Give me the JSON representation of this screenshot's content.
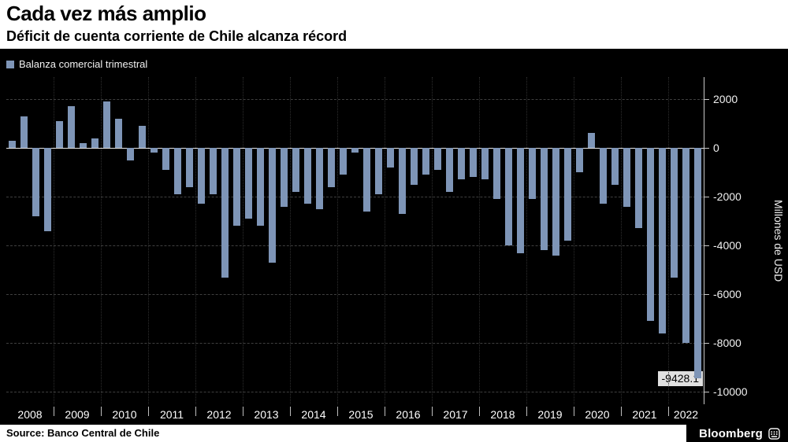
{
  "header": {
    "title": "Cada vez más amplio",
    "subtitle": "Déficit de cuenta corriente de Chile alcanza récord"
  },
  "legend": {
    "label": "Balanza comercial trimestral"
  },
  "y_axis": {
    "title": "Millones de USD"
  },
  "footer": {
    "source": "Source: Banco Central de Chile",
    "brand": "Bloomberg"
  },
  "chart_data": {
    "type": "bar",
    "title": "Cada vez más amplio",
    "subtitle": "Déficit de cuenta corriente de Chile alcanza récord",
    "legend": "Balanza comercial trimestral",
    "ylabel": "Millones de USD",
    "bar_color": "#7E95B7",
    "ylim": [
      -10500,
      2900
    ],
    "yticks": [
      2000,
      0,
      -2000,
      -4000,
      -6000,
      -8000,
      -10000
    ],
    "grid": "dashed horizontal, dotted vertical year separators, legend top-left, y-axis right",
    "start_period": "2008-Q1",
    "end_period": "2022-Q3",
    "year_labels": [
      "2008",
      "2009",
      "2010",
      "2011",
      "2012",
      "2013",
      "2014",
      "2015",
      "2016",
      "2017",
      "2018",
      "2019",
      "2020",
      "2021",
      "2022"
    ],
    "values": [
      300,
      1300,
      -2800,
      -3400,
      1100,
      1700,
      200,
      400,
      1900,
      1200,
      -500,
      900,
      -200,
      -900,
      -1900,
      -1600,
      -2300,
      -1900,
      -5300,
      -3200,
      -2900,
      -3200,
      -4700,
      -2400,
      -1800,
      -2300,
      -2500,
      -1600,
      -1100,
      -200,
      -2600,
      -1900,
      -800,
      -2700,
      -1500,
      -1100,
      -900,
      -1800,
      -1300,
      -1200,
      -1300,
      -2100,
      -4000,
      -4300,
      -2100,
      -4200,
      -4400,
      -3800,
      -1000,
      600,
      -2300,
      -1500,
      -2400,
      -3300,
      -7100,
      -7600,
      -5300,
      -8000,
      -9428.1
    ],
    "last_value_label": "-9428.1"
  }
}
